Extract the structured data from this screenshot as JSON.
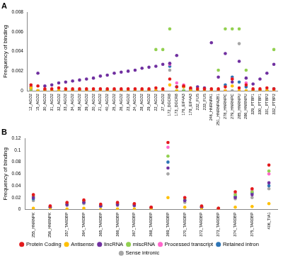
{
  "chart_data": [
    {
      "type": "scatter",
      "title": "A",
      "y_label": "Frequency of binding",
      "marker": "circle",
      "grid": false,
      "categories": [
        "12_AGO2",
        "15_AGO2",
        "30_AGO2",
        "31_AGO2",
        "32_AGO2",
        "33_AGO2",
        "34_AGO2",
        "38_AGO2",
        "39_AGO2",
        "20_AGO2",
        "21_AGO2",
        "40_AGO2",
        "25_AGO2",
        "26_AGO2",
        "23_AGO2",
        "24_AGO2",
        "28_AGO2",
        "29_AGO2",
        "22_AGO2",
        "27_AGO2",
        "172_DGCR8",
        "173_DGCR8",
        "176_EIF4A3",
        "178_EIF4A3",
        "232_FUS",
        "233_FUS",
        "246_HNRNPA1",
        "251_HNRNPA2B1",
        "278_HNRNPC",
        "279_HNRNPC",
        "285_HNRNPU",
        "286_HNRNPU",
        "329_PTBP1",
        "330_PTBP1",
        "331_PTBP2",
        "332_PTBP2"
      ],
      "ylim": [
        0,
        0.008
      ],
      "yticks": [
        0,
        0.002,
        0.004,
        0.006,
        0.008
      ],
      "series": [
        {
          "name": "Protein Coding",
          "color": "#e31a1c",
          "values": [
            0.0006,
            0.0005,
            0.0002,
            0.0002,
            0.0003,
            0.0002,
            0.0002,
            0.0002,
            0.0002,
            0.0002,
            0.0002,
            0.0002,
            0.0002,
            0.0002,
            0.0002,
            0.0002,
            0.0002,
            0.0002,
            0.0003,
            0.0002,
            0.0012,
            0.0004,
            0.0005,
            0.0003,
            0.0002,
            0.0002,
            0.0002,
            0.0002,
            0.0004,
            0.0012,
            0.0003,
            0.0006,
            0.0002,
            0.0002,
            0.0003,
            0.0002
          ]
        },
        {
          "name": "Antisense",
          "color": "#ffc000",
          "values": [
            0.0003,
            0,
            0,
            0,
            0,
            0,
            0,
            0,
            0,
            0,
            0,
            0,
            0,
            0,
            0,
            0,
            0,
            0,
            0,
            0,
            0.0006,
            0,
            0.0004,
            0,
            0,
            0,
            0,
            0,
            0,
            0.0005,
            0,
            0,
            0,
            0,
            0,
            0
          ]
        },
        {
          "name": "lincRNA",
          "color": "#7030a0",
          "values": [
            0.0004,
            0.0018,
            0.0005,
            0.0006,
            0.0008,
            0.0009,
            0.001,
            0.0011,
            0.0012,
            0.0013,
            0.0015,
            0.0016,
            0.0018,
            0.0019,
            0.002,
            0.0021,
            0.0023,
            0.0024,
            0.0025,
            0.0027,
            0.0028,
            0.0036,
            0.0004,
            0.0002,
            0.0004,
            0.0003,
            0.0049,
            0.0014,
            0.0038,
            0.0009,
            0.003,
            0.0013,
            0.0007,
            0.0012,
            0.0018,
            0.0027
          ]
        },
        {
          "name": "miscRNA",
          "color": "#92d050",
          "values": [
            0,
            0,
            0,
            0,
            0,
            0,
            0,
            0,
            0,
            0,
            0,
            0,
            0,
            0,
            0,
            0,
            0,
            0,
            0.0042,
            0.0042,
            0.0063,
            0,
            0,
            0,
            0,
            0,
            0,
            0.0021,
            0.0063,
            0.0063,
            0.0063,
            0.0021,
            0,
            0,
            0,
            0.0042
          ]
        },
        {
          "name": "Processed transcript",
          "color": "#ff66cc",
          "values": [
            0,
            0,
            0,
            0,
            0,
            0,
            0,
            0,
            0,
            0,
            0,
            0,
            0,
            0,
            0,
            0,
            0,
            0,
            0,
            0,
            0.0027,
            0.0008,
            0.0006,
            0,
            0,
            0,
            0,
            0,
            0,
            0.0012,
            0,
            0.0008,
            0,
            0,
            0,
            0
          ]
        },
        {
          "name": "Retained intron",
          "color": "#2e75b6",
          "values": [
            0.0002,
            0,
            0,
            0,
            0,
            0,
            0,
            0,
            0,
            0,
            0,
            0,
            0,
            0,
            0,
            0,
            0,
            0,
            0,
            0,
            0.0025,
            0.0004,
            0,
            0,
            0,
            0,
            0,
            0,
            0.0006,
            0.0014,
            0.0009,
            0.0004,
            0,
            0,
            0,
            0.0002
          ]
        },
        {
          "name": "Sense intronic",
          "color": "#a6a6a6",
          "values": [
            0,
            0,
            0,
            0,
            0,
            0,
            0,
            0,
            0,
            0,
            0,
            0,
            0,
            0,
            0,
            0,
            0,
            0,
            0,
            0,
            0.0021,
            0,
            0,
            0,
            0,
            0,
            0,
            0,
            0,
            0,
            0.0048,
            0,
            0,
            0,
            0,
            0
          ]
        }
      ]
    },
    {
      "type": "scatter",
      "title": "B",
      "y_label": "Frequency of binding",
      "marker": "circle",
      "grid": false,
      "legend": "bottom",
      "categories": [
        "255_HNRNPK",
        "256_HNRNPK",
        "357_TARDBP",
        "364_TARDBP",
        "365_TARDBP",
        "366_TARDBP",
        "367_TARDBP",
        "368_TARDBP",
        "369_TARDBP",
        "370_TARDBP",
        "372_TARDBP",
        "373_TARDBP",
        "374_TARDBP",
        "375_TARDBP",
        "406_TIA1"
      ],
      "ylim": [
        0,
        0.12
      ],
      "yticks": [
        0,
        0.02,
        0.04,
        0.06,
        0.08,
        0.1,
        0.12
      ],
      "series": [
        {
          "name": "Protein Coding",
          "color": "#e31a1c",
          "values": [
            0.025,
            0.006,
            0.012,
            0.016,
            0.009,
            0.012,
            0.01,
            0.004,
            0.113,
            0.02,
            0.006,
            0.002,
            0.03,
            0.035,
            0.075
          ]
        },
        {
          "name": "Antisense",
          "color": "#ffc000",
          "values": [
            0.002,
            0,
            0.001,
            0.002,
            0,
            0.001,
            0.001,
            0,
            0.02,
            0.004,
            0,
            0,
            0.004,
            0.005,
            0.01
          ]
        },
        {
          "name": "lincRNA",
          "color": "#7030a0",
          "values": [
            0.02,
            0.004,
            0.008,
            0.012,
            0.006,
            0.008,
            0.007,
            0.003,
            0.07,
            0.015,
            0.004,
            0.001,
            0.02,
            0.025,
            0.045
          ]
        },
        {
          "name": "miscRNA",
          "color": "#92d050",
          "values": [
            0.022,
            0.005,
            0.01,
            0.014,
            0.007,
            0.01,
            0.009,
            0.003,
            0.09,
            0.018,
            0.005,
            0.002,
            0.025,
            0.03,
            0.065
          ]
        },
        {
          "name": "Processed transcript",
          "color": "#ff66cc",
          "values": [
            0.024,
            0.006,
            0.011,
            0.015,
            0.008,
            0.011,
            0.009,
            0.004,
            0.105,
            0.02,
            0.005,
            0.002,
            0.027,
            0.032,
            0.06
          ]
        },
        {
          "name": "Retained intron",
          "color": "#2e75b6",
          "values": [
            0.018,
            0.004,
            0.009,
            0.012,
            0.006,
            0.009,
            0.008,
            0.003,
            0.08,
            0.016,
            0.004,
            0.001,
            0.022,
            0.028,
            0.04
          ]
        },
        {
          "name": "Sense intronic",
          "color": "#a6a6a6",
          "values": [
            0.015,
            0.003,
            0.007,
            0.01,
            0.005,
            0.007,
            0.006,
            0.002,
            0.06,
            0.012,
            0.003,
            0.001,
            0.018,
            0.02,
            0.035
          ]
        }
      ]
    }
  ]
}
